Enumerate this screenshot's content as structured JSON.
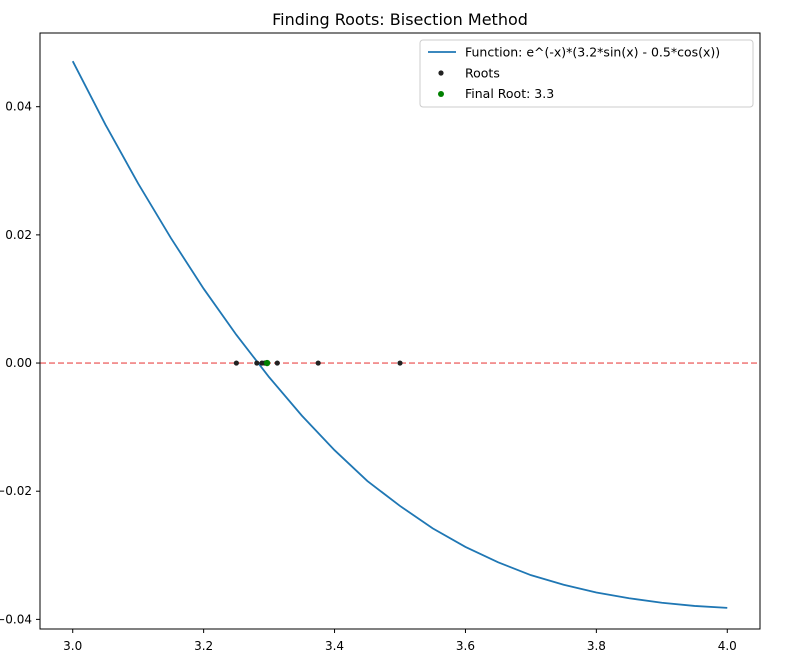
{
  "chart_data": {
    "type": "line",
    "title": "Finding Roots: Bisection Method",
    "xlabel": "",
    "ylabel": "",
    "xlim": [
      2.95,
      4.05
    ],
    "ylim": [
      -0.0415,
      0.0515
    ],
    "xticks": [
      3.0,
      3.2,
      3.4,
      3.6,
      3.8,
      4.0
    ],
    "xtick_labels": [
      "3.0",
      "3.2",
      "3.4",
      "3.6",
      "3.8",
      "4.0"
    ],
    "yticks": [
      0.04,
      0.02,
      0.0,
      -0.02,
      -0.04
    ],
    "ytick_labels": [
      "0.04",
      "0.02",
      "0.00",
      "−0.02",
      "−0.04"
    ],
    "grid": false,
    "legend_position": "top-right",
    "function_series": {
      "name": "Function: e^(-x)*(3.2*sin(x) - 0.5*cos(x))",
      "x": [
        3.0,
        3.05,
        3.1,
        3.15,
        3.2,
        3.25,
        3.3,
        3.35,
        3.4,
        3.45,
        3.5,
        3.55,
        3.6,
        3.65,
        3.7,
        3.75,
        3.8,
        3.85,
        3.9,
        3.95,
        4.0
      ],
      "y": [
        0.0471,
        0.0372,
        0.028,
        0.0195,
        0.0116,
        0.0044,
        -0.0022,
        -0.0082,
        -0.0136,
        -0.0184,
        -0.0223,
        -0.0258,
        -0.0287,
        -0.0311,
        -0.0331,
        -0.0346,
        -0.0358,
        -0.0367,
        -0.0374,
        -0.0379,
        -0.0382
      ],
      "color": "#1f77b4"
    },
    "roots_series": {
      "name": "Roots",
      "x": [
        3.5,
        3.375,
        3.3125,
        3.28125,
        3.25,
        3.296875,
        3.2890625,
        3.29296875
      ],
      "y": [
        0,
        0,
        0,
        0,
        0,
        0,
        0,
        0
      ],
      "color": "#222222"
    },
    "final_root": {
      "name": "Final Root: 3.3",
      "x": 3.2969,
      "y": 0,
      "color": "#008000"
    },
    "zero_line": {
      "y": 0,
      "color": "#f08080",
      "style": "dashed"
    }
  }
}
